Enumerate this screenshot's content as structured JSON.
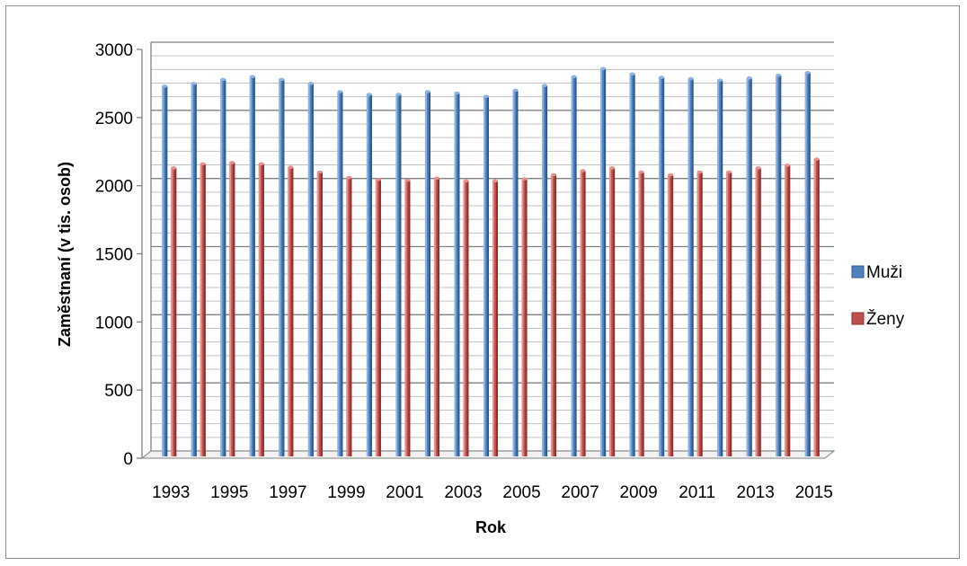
{
  "chart_data": {
    "type": "bar",
    "categories": [
      "1993",
      "1994",
      "1995",
      "1996",
      "1997",
      "1998",
      "1999",
      "2000",
      "2001",
      "2002",
      "2003",
      "2004",
      "2005",
      "2006",
      "2007",
      "2008",
      "2009",
      "2010",
      "2011",
      "2012",
      "2013",
      "2014",
      "2015"
    ],
    "tick_labels": [
      "1993",
      "1995",
      "1997",
      "1999",
      "2001",
      "2003",
      "2005",
      "2007",
      "2009",
      "2011",
      "2013",
      "2015"
    ],
    "series": [
      {
        "name": "Muži",
        "color": "#4f81bd",
        "values": [
          2730,
          2750,
          2780,
          2800,
          2780,
          2750,
          2690,
          2670,
          2670,
          2690,
          2680,
          2655,
          2700,
          2735,
          2800,
          2860,
          2820,
          2795,
          2785,
          2775,
          2790,
          2810,
          2830
        ]
      },
      {
        "name": "Ženy",
        "color": "#c0504d",
        "values": [
          2130,
          2160,
          2170,
          2160,
          2135,
          2100,
          2060,
          2045,
          2040,
          2055,
          2035,
          2035,
          2050,
          2080,
          2110,
          2130,
          2100,
          2080,
          2100,
          2100,
          2130,
          2150,
          2195
        ]
      }
    ],
    "xlabel": "Rok",
    "ylabel": "Zaměstnaní (v tis. osob)",
    "ylim": [
      0,
      3000
    ],
    "yticks": [
      "0",
      "500",
      "1000",
      "1500",
      "2000",
      "2500",
      "3000"
    ],
    "grid": true,
    "legend_position": "right"
  }
}
